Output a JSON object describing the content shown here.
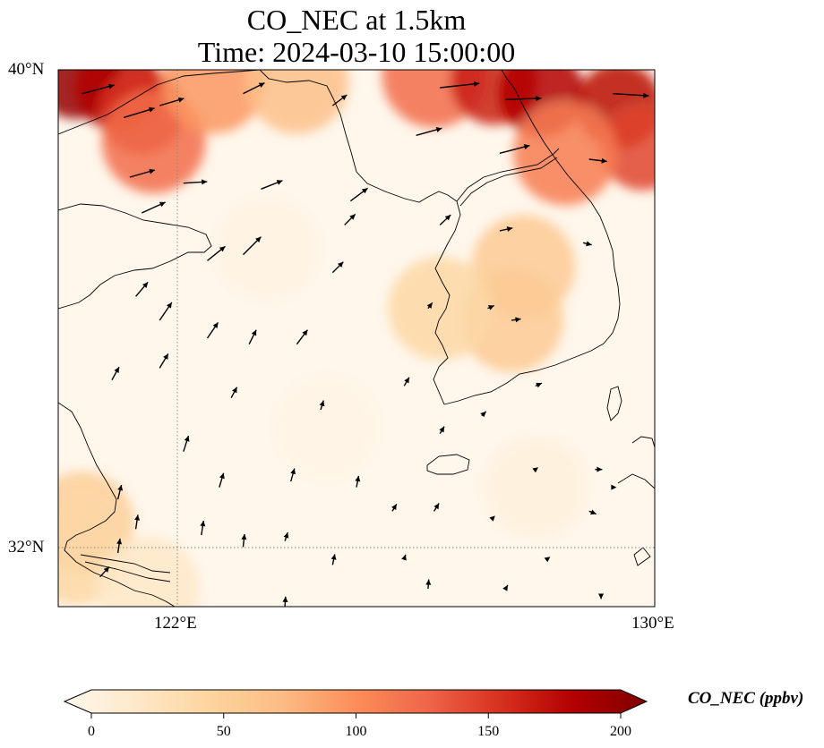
{
  "figure": {
    "title_line1": "CO_NEC at 1.5km",
    "title_line2": "Time: 2024-03-10 15:00:00"
  },
  "map": {
    "projection": "PlateCarree",
    "lon_range": [
      120,
      130
    ],
    "lat_range": [
      31,
      40
    ],
    "xticks": [
      {
        "lon": 122,
        "label": "122°E"
      },
      {
        "lon": 130,
        "label": "130°E"
      }
    ],
    "yticks": [
      {
        "lat": 40,
        "label": "40°N"
      },
      {
        "lat": 32,
        "label": "32°N"
      }
    ],
    "gridlines": {
      "lons": [
        122
      ],
      "lats": [
        32
      ],
      "style": "dotted",
      "color": "#888888"
    },
    "coastline_color": "#000000",
    "arrow_color": "#000000"
  },
  "colorbar": {
    "label": "CO_NEC (ppbv)",
    "ticks": [
      0,
      50,
      100,
      150,
      200
    ],
    "tick_labels": [
      "0",
      "50",
      "100",
      "150",
      "200"
    ],
    "range": [
      0,
      200
    ],
    "cmap": "OrRd",
    "extend": "both",
    "stops": [
      "#fff7ec",
      "#fee8c8",
      "#fdd49e",
      "#fdbb84",
      "#fc8d59",
      "#ef6548",
      "#d7301f",
      "#b30000",
      "#7f0000"
    ]
  },
  "chart_data": {
    "type": "heatmap",
    "variable": "CO_NEC",
    "units": "ppbv",
    "level": "1.5km",
    "time": "2024-03-10 15:00:00",
    "field_anchors": [
      {
        "lon": 120.3,
        "lat": 39.9,
        "value": 190
      },
      {
        "lon": 121.0,
        "lat": 39.7,
        "value": 175
      },
      {
        "lon": 121.4,
        "lat": 39.3,
        "value": 150
      },
      {
        "lon": 121.6,
        "lat": 38.8,
        "value": 120
      },
      {
        "lon": 122.6,
        "lat": 39.8,
        "value": 95
      },
      {
        "lon": 124.0,
        "lat": 39.8,
        "value": 70
      },
      {
        "lon": 126.3,
        "lat": 39.9,
        "value": 120
      },
      {
        "lon": 127.3,
        "lat": 39.8,
        "value": 160
      },
      {
        "lon": 128.1,
        "lat": 39.6,
        "value": 175
      },
      {
        "lon": 129.4,
        "lat": 39.4,
        "value": 170
      },
      {
        "lon": 129.8,
        "lat": 38.7,
        "value": 140
      },
      {
        "lon": 128.5,
        "lat": 38.6,
        "value": 110
      },
      {
        "lon": 127.8,
        "lat": 36.7,
        "value": 60
      },
      {
        "lon": 127.6,
        "lat": 35.8,
        "value": 60
      },
      {
        "lon": 126.4,
        "lat": 36.0,
        "value": 45
      },
      {
        "lon": 123.5,
        "lat": 37.0,
        "value": 10
      },
      {
        "lon": 124.5,
        "lat": 34.0,
        "value": 8
      },
      {
        "lon": 120.4,
        "lat": 32.4,
        "value": 55
      },
      {
        "lon": 120.3,
        "lat": 31.9,
        "value": 45
      },
      {
        "lon": 121.5,
        "lat": 31.3,
        "value": 25
      },
      {
        "lon": 128.0,
        "lat": 33.0,
        "value": 15
      }
    ],
    "wind_vectors": [
      {
        "lon": 120.4,
        "lat": 39.6,
        "u": 4.5,
        "v": 1.2
      },
      {
        "lon": 121.1,
        "lat": 39.2,
        "u": 4.3,
        "v": 1.3
      },
      {
        "lon": 121.7,
        "lat": 39.4,
        "u": 3.4,
        "v": 1.0
      },
      {
        "lon": 123.1,
        "lat": 39.6,
        "u": 3.0,
        "v": 1.5
      },
      {
        "lon": 124.6,
        "lat": 39.4,
        "u": 2.0,
        "v": 1.5
      },
      {
        "lon": 126.4,
        "lat": 39.7,
        "u": 5.5,
        "v": 0.6
      },
      {
        "lon": 127.5,
        "lat": 39.5,
        "u": 5.0,
        "v": 0.2
      },
      {
        "lon": 129.3,
        "lat": 39.6,
        "u": 5.0,
        "v": -0.3
      },
      {
        "lon": 126.0,
        "lat": 38.9,
        "u": 3.6,
        "v": 1.0
      },
      {
        "lon": 127.4,
        "lat": 38.6,
        "u": 4.2,
        "v": 1.1
      },
      {
        "lon": 128.9,
        "lat": 38.5,
        "u": 2.5,
        "v": -0.3
      },
      {
        "lon": 121.2,
        "lat": 38.2,
        "u": 3.5,
        "v": 1.0
      },
      {
        "lon": 122.1,
        "lat": 38.1,
        "u": 3.3,
        "v": 0.2
      },
      {
        "lon": 123.4,
        "lat": 38.0,
        "u": 3.0,
        "v": 1.2
      },
      {
        "lon": 124.9,
        "lat": 37.8,
        "u": 2.4,
        "v": 1.8
      },
      {
        "lon": 121.4,
        "lat": 37.6,
        "u": 3.3,
        "v": 1.5
      },
      {
        "lon": 124.8,
        "lat": 37.4,
        "u": 1.5,
        "v": 1.5
      },
      {
        "lon": 126.4,
        "lat": 37.4,
        "u": 1.5,
        "v": 1.4
      },
      {
        "lon": 127.4,
        "lat": 37.3,
        "u": 1.8,
        "v": 0.4
      },
      {
        "lon": 128.8,
        "lat": 37.1,
        "u": 1.2,
        "v": -0.3
      },
      {
        "lon": 122.5,
        "lat": 36.8,
        "u": 2.5,
        "v": 2.0
      },
      {
        "lon": 123.1,
        "lat": 36.9,
        "u": 2.5,
        "v": 2.5
      },
      {
        "lon": 124.6,
        "lat": 36.6,
        "u": 1.5,
        "v": 1.5
      },
      {
        "lon": 121.3,
        "lat": 36.2,
        "u": 1.7,
        "v": 2.0
      },
      {
        "lon": 121.7,
        "lat": 35.8,
        "u": 1.7,
        "v": 2.5
      },
      {
        "lon": 122.5,
        "lat": 35.5,
        "u": 1.5,
        "v": 2.2
      },
      {
        "lon": 123.2,
        "lat": 35.4,
        "u": 1.0,
        "v": 2.0
      },
      {
        "lon": 124.0,
        "lat": 35.4,
        "u": 1.5,
        "v": 2.0
      },
      {
        "lon": 126.2,
        "lat": 36.0,
        "u": 0.6,
        "v": 0.8
      },
      {
        "lon": 127.2,
        "lat": 36.0,
        "u": 0.9,
        "v": 0.4
      },
      {
        "lon": 127.6,
        "lat": 35.8,
        "u": 1.3,
        "v": 0.2
      },
      {
        "lon": 121.7,
        "lat": 35.0,
        "u": 1.2,
        "v": 2.0
      },
      {
        "lon": 120.9,
        "lat": 34.8,
        "u": 1.0,
        "v": 1.8
      },
      {
        "lon": 122.9,
        "lat": 34.5,
        "u": 0.8,
        "v": 1.5
      },
      {
        "lon": 124.4,
        "lat": 34.3,
        "u": 0.4,
        "v": 1.3
      },
      {
        "lon": 125.8,
        "lat": 34.7,
        "u": 0.7,
        "v": 1.2
      },
      {
        "lon": 128.0,
        "lat": 34.7,
        "u": 0.9,
        "v": 0.4
      },
      {
        "lon": 126.4,
        "lat": 33.9,
        "u": 0.6,
        "v": 1.0
      },
      {
        "lon": 127.1,
        "lat": 34.2,
        "u": 0.6,
        "v": 0.6
      },
      {
        "lon": 122.1,
        "lat": 33.6,
        "u": 0.7,
        "v": 2.2
      },
      {
        "lon": 122.7,
        "lat": 33.0,
        "u": 0.6,
        "v": 2.0
      },
      {
        "lon": 123.9,
        "lat": 33.1,
        "u": 0.5,
        "v": 1.8
      },
      {
        "lon": 125.0,
        "lat": 33.0,
        "u": 0.3,
        "v": 1.6
      },
      {
        "lon": 125.6,
        "lat": 32.6,
        "u": 0.6,
        "v": 1.0
      },
      {
        "lon": 126.3,
        "lat": 32.6,
        "u": 0.7,
        "v": 1.1
      },
      {
        "lon": 127.3,
        "lat": 32.5,
        "u": 0.2,
        "v": 0.2
      },
      {
        "lon": 121.0,
        "lat": 32.8,
        "u": 0.5,
        "v": 2.0
      },
      {
        "lon": 121.3,
        "lat": 32.3,
        "u": 0.3,
        "v": 2.0
      },
      {
        "lon": 122.4,
        "lat": 32.2,
        "u": 0.3,
        "v": 2.0
      },
      {
        "lon": 123.1,
        "lat": 32.0,
        "u": 0.2,
        "v": 1.8
      },
      {
        "lon": 123.8,
        "lat": 32.1,
        "u": 0.4,
        "v": 1.2
      },
      {
        "lon": 124.6,
        "lat": 31.7,
        "u": 0.3,
        "v": 1.5
      },
      {
        "lon": 125.8,
        "lat": 31.8,
        "u": 0.2,
        "v": 0.6
      },
      {
        "lon": 126.2,
        "lat": 31.3,
        "u": 0.1,
        "v": 1.3
      },
      {
        "lon": 127.5,
        "lat": 31.3,
        "u": 0.3,
        "v": 0.5
      },
      {
        "lon": 128.2,
        "lat": 31.8,
        "u": 0.4,
        "v": 0.3
      },
      {
        "lon": 121.0,
        "lat": 31.9,
        "u": 0.3,
        "v": 2.0
      },
      {
        "lon": 120.7,
        "lat": 31.5,
        "u": 1.3,
        "v": 1.4
      },
      {
        "lon": 123.8,
        "lat": 31.0,
        "u": 0.1,
        "v": 1.4
      },
      {
        "lon": 128.9,
        "lat": 32.6,
        "u": 1.0,
        "v": -0.4
      },
      {
        "lon": 129.3,
        "lat": 33.0,
        "u": 0.5,
        "v": 0.0
      },
      {
        "lon": 129.1,
        "lat": 31.2,
        "u": 0.0,
        "v": -0.6
      },
      {
        "lon": 128.0,
        "lat": 33.3,
        "u": 0.4,
        "v": 0.3
      },
      {
        "lon": 129.0,
        "lat": 33.3,
        "u": 1.0,
        "v": 0.0
      }
    ]
  }
}
